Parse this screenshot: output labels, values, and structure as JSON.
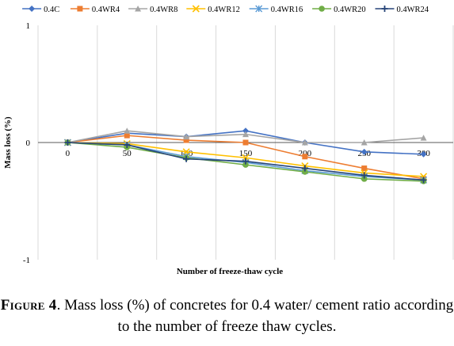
{
  "chart_data": {
    "type": "line",
    "xlabel": "Number of freeze-thaw cycle",
    "ylabel": "Mass loss (%)",
    "ylim": [
      -1,
      1
    ],
    "yticks": [
      "1",
      "0",
      "-1"
    ],
    "x": [
      "0",
      "50",
      "100",
      "150",
      "200",
      "250",
      "300"
    ],
    "grid": "vertical",
    "legend": "top",
    "series": [
      {
        "name": "0.4C",
        "color": "#4472C4",
        "marker": "diamond",
        "values": [
          0,
          0.08,
          0.05,
          0.1,
          0.0,
          -0.08,
          -0.1
        ]
      },
      {
        "name": "0.4WR4",
        "color": "#ED7D31",
        "marker": "square",
        "values": [
          0,
          0.06,
          0.02,
          0.0,
          -0.12,
          -0.22,
          -0.31
        ]
      },
      {
        "name": "0.4WR8",
        "color": "#A5A5A5",
        "marker": "triangle",
        "values": [
          0,
          0.1,
          0.05,
          0.07,
          0.0,
          0.0,
          0.04
        ]
      },
      {
        "name": "0.4WR12",
        "color": "#FFC000",
        "marker": "x",
        "values": [
          0,
          -0.01,
          -0.08,
          -0.13,
          -0.2,
          -0.26,
          -0.29
        ]
      },
      {
        "name": "0.4WR16",
        "color": "#5B9BD5",
        "marker": "star",
        "values": [
          0,
          -0.02,
          -0.12,
          -0.17,
          -0.24,
          -0.29,
          -0.32
        ]
      },
      {
        "name": "0.4WR20",
        "color": "#70AD47",
        "marker": "circle",
        "values": [
          0,
          -0.04,
          -0.13,
          -0.19,
          -0.25,
          -0.31,
          -0.33
        ]
      },
      {
        "name": "0.4WR24",
        "color": "#264478",
        "marker": "plus",
        "values": [
          0,
          -0.02,
          -0.14,
          -0.16,
          -0.22,
          -0.28,
          -0.32
        ]
      }
    ]
  },
  "caption": {
    "label": "Figure 4",
    "text": ". Mass loss (%) of concretes for 0.4 water/ cement ratio according to the number of freeze thaw cycles."
  }
}
